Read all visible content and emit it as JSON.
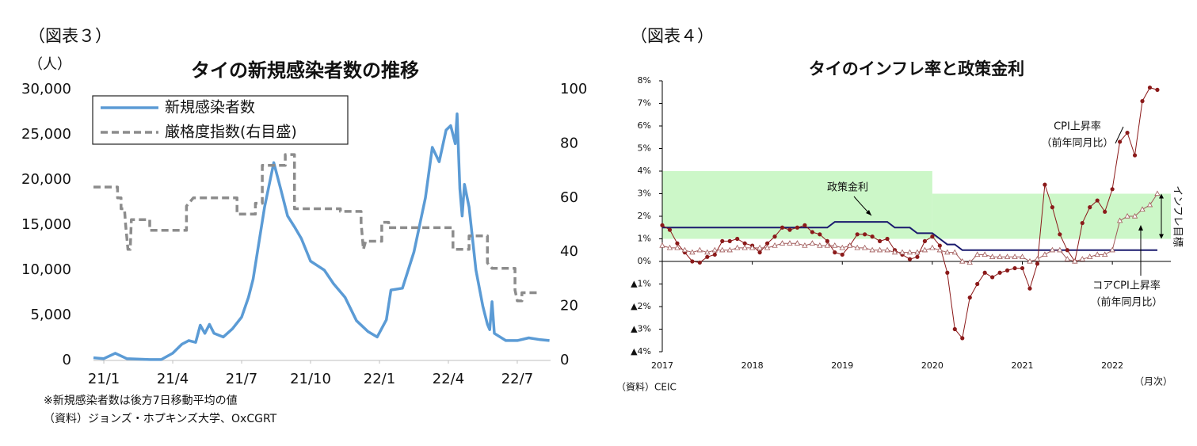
{
  "chart_data": [
    {
      "type": "line",
      "label": "（図表３）",
      "title": "タイの新規感染者数の推移",
      "y_unit": "（人）",
      "xlim": [
        -0.45,
        19.45
      ],
      "xticks": [
        {
          "value": 0,
          "label": "21/1"
        },
        {
          "value": 3,
          "label": "21/4"
        },
        {
          "value": 6,
          "label": "21/7"
        },
        {
          "value": 9,
          "label": "21/10"
        },
        {
          "value": 12,
          "label": "22/1"
        },
        {
          "value": 15,
          "label": "22/4"
        },
        {
          "value": 18,
          "label": "22/7"
        }
      ],
      "ylim": [
        0,
        30000
      ],
      "yticks": [
        0,
        {
          "value": 5000,
          "label": "5,000"
        },
        {
          "value": 10000,
          "label": "10,000"
        },
        {
          "value": 15000,
          "label": "15,000"
        },
        {
          "value": 20000,
          "label": "20,000"
        },
        {
          "value": 25000,
          "label": "25,000"
        },
        {
          "value": 30000,
          "label": "30,000"
        }
      ],
      "y2lim": [
        0,
        100
      ],
      "y2ticks": [
        0,
        20,
        40,
        60,
        80,
        100
      ],
      "legend": "upper left",
      "series": [
        {
          "name": "新規感染者数",
          "color": "#5b9bd5",
          "x": [
            -0.45,
            0,
            0.5,
            1,
            2,
            2.5,
            3,
            3.4,
            3.7,
            4,
            4.2,
            4.4,
            4.6,
            4.8,
            5.2,
            5.6,
            6,
            6.3,
            6.5,
            7,
            7.4,
            7.7,
            8,
            8.3,
            8.6,
            9,
            9.3,
            9.6,
            10,
            10.5,
            11,
            11.5,
            11.9,
            12.3,
            12.5,
            13,
            13.5,
            14,
            14.3,
            14.6,
            14.9,
            15.1,
            15.3,
            15.38,
            15.5,
            15.6,
            15.7,
            15.9,
            16.2,
            16.5,
            16.7,
            16.8,
            16.9,
            17,
            17.5,
            18,
            18.5,
            19,
            19.4
          ],
          "values": [
            300,
            200,
            800,
            200,
            100,
            100,
            800,
            1800,
            2200,
            2000,
            3900,
            3000,
            4000,
            3000,
            2600,
            3500,
            4800,
            7000,
            9000,
            17000,
            21900,
            19000,
            16000,
            14800,
            13500,
            11000,
            10500,
            10000,
            8500,
            7000,
            4400,
            3200,
            2600,
            4500,
            7800,
            8000,
            12000,
            18000,
            23600,
            22000,
            25500,
            26000,
            24000,
            27300,
            19000,
            16000,
            19500,
            17000,
            10000,
            6000,
            4000,
            3400,
            6500,
            3000,
            2200,
            2200,
            2500,
            2300,
            2200
          ]
        },
        {
          "name": "厳格度指数(右目盛)",
          "color": "#8c8c8c",
          "dashed": true,
          "axis": "y2",
          "x": [
            -0.45,
            0.6,
            0.6,
            0.75,
            0.75,
            0.9,
            0.95,
            1.05,
            1.15,
            1.2,
            2.0,
            2.0,
            3.6,
            3.6,
            3.9,
            5.8,
            5.8,
            6.6,
            6.6,
            6.9,
            6.9,
            7.9,
            7.9,
            8.3,
            8.3,
            10.3,
            10.3,
            11.2,
            11.2,
            11.3,
            11.4,
            12.1,
            12.1,
            12.4,
            12.4,
            15.2,
            15.2,
            15.9,
            15.9,
            16.7,
            16.7,
            16.9,
            17.9,
            17.9,
            18.0,
            18.2,
            18.2,
            19.0
          ],
          "values": [
            64,
            64,
            60,
            60,
            56,
            56,
            50,
            41,
            41,
            52,
            52,
            48,
            48,
            57,
            60,
            60,
            54,
            54,
            58,
            58,
            72,
            72,
            76,
            76,
            56,
            56,
            55,
            55,
            51,
            41,
            44,
            44,
            51,
            51,
            49,
            49,
            41,
            41,
            46,
            46,
            36,
            34,
            34,
            26,
            22,
            22,
            25,
            25
          ]
        }
      ],
      "notes": [
        "※新規感染者数は後方7日移動平均の値",
        "（資料）ジョンズ・ホプキンズ大学、OxCGRT"
      ]
    },
    {
      "type": "line",
      "label": "（図表４）",
      "title": "タイのインフレ率と政策金利",
      "x": [
        0,
        1,
        2,
        3,
        4,
        5,
        6,
        7,
        8,
        9,
        10,
        11,
        12,
        13,
        14,
        15,
        16,
        17,
        18,
        19,
        20,
        21,
        22,
        23,
        24,
        25,
        26,
        27,
        28,
        29,
        30,
        31,
        32,
        33,
        34,
        35,
        36,
        37,
        38,
        39,
        40,
        41,
        42,
        43,
        44,
        45,
        46,
        47,
        48,
        49,
        50,
        51,
        52,
        53,
        54,
        55,
        56,
        57,
        58,
        59,
        60,
        61,
        62,
        63,
        64,
        65,
        66
      ],
      "xlim": [
        0,
        67.8
      ],
      "xticks": [
        {
          "value": 0,
          "label": "2017"
        },
        {
          "value": 12,
          "label": "2018"
        },
        {
          "value": 24,
          "label": "2019"
        },
        {
          "value": 36,
          "label": "2020"
        },
        {
          "value": 48,
          "label": "2021"
        },
        {
          "value": 60,
          "label": "2022"
        }
      ],
      "ylim": [
        -4,
        8
      ],
      "yticks": [
        {
          "value": -4,
          "label": "▲4%"
        },
        {
          "value": -3,
          "label": "▲3%"
        },
        {
          "value": -2,
          "label": "▲2%"
        },
        {
          "value": -1,
          "label": "▲1%"
        },
        {
          "value": 0,
          "label": "0%"
        },
        {
          "value": 1,
          "label": "1%"
        },
        {
          "value": 2,
          "label": "2%"
        },
        {
          "value": 3,
          "label": "3%"
        },
        {
          "value": 4,
          "label": "4%"
        },
        {
          "value": 5,
          "label": "5%"
        },
        {
          "value": 6,
          "label": "6%"
        },
        {
          "value": 7,
          "label": "7%"
        },
        {
          "value": 8,
          "label": "8%"
        }
      ],
      "target_band": {
        "label": "インフレ目標",
        "color": "#ccf7c8",
        "ranges": [
          {
            "x": [
              0,
              36
            ],
            "low": 1,
            "high": 4
          },
          {
            "x": [
              36,
              67.8
            ],
            "low": 1,
            "high": 3
          }
        ]
      },
      "series": [
        {
          "name": "政策金利",
          "color": "#1a1a6e",
          "marker": "none",
          "values": [
            1.5,
            1.5,
            1.5,
            1.5,
            1.5,
            1.5,
            1.5,
            1.5,
            1.5,
            1.5,
            1.5,
            1.5,
            1.5,
            1.5,
            1.5,
            1.5,
            1.5,
            1.5,
            1.5,
            1.5,
            1.5,
            1.5,
            1.5,
            1.75,
            1.75,
            1.75,
            1.75,
            1.75,
            1.75,
            1.75,
            1.75,
            1.5,
            1.5,
            1.5,
            1.25,
            1.25,
            1.25,
            1.0,
            0.75,
            0.75,
            0.5,
            0.5,
            0.5,
            0.5,
            0.5,
            0.5,
            0.5,
            0.5,
            0.5,
            0.5,
            0.5,
            0.5,
            0.5,
            0.5,
            0.5,
            0.5,
            0.5,
            0.5,
            0.5,
            0.5,
            0.5,
            0.5,
            0.5,
            0.5,
            0.5,
            0.5,
            0.5
          ]
        },
        {
          "name": "CPI上昇率",
          "color": "#8b1a1a",
          "marker": "circle",
          "values": [
            1.6,
            1.4,
            0.8,
            0.4,
            0.0,
            -0.05,
            0.2,
            0.3,
            0.9,
            0.9,
            1.0,
            0.8,
            0.7,
            0.4,
            0.8,
            1.1,
            1.5,
            1.4,
            1.5,
            1.6,
            1.3,
            1.2,
            0.9,
            0.4,
            0.3,
            0.7,
            1.2,
            1.2,
            1.1,
            0.9,
            1.0,
            0.5,
            0.3,
            0.1,
            0.2,
            0.9,
            1.1,
            0.7,
            -0.5,
            -3.0,
            -3.4,
            -1.6,
            -1.0,
            -0.5,
            -0.7,
            -0.5,
            -0.4,
            -0.3,
            -0.3,
            -1.2,
            -0.1,
            3.4,
            2.4,
            1.2,
            0.5,
            0.0,
            1.7,
            2.4,
            2.7,
            2.2,
            3.2,
            5.3,
            5.7,
            4.7,
            7.1,
            7.7,
            7.6
          ]
        },
        {
          "name": "コアCPI上昇率",
          "color": "#a05a5a",
          "marker": "triangle",
          "values": [
            0.7,
            0.6,
            0.6,
            0.5,
            0.4,
            0.5,
            0.4,
            0.5,
            0.5,
            0.5,
            0.6,
            0.6,
            0.6,
            0.6,
            0.6,
            0.7,
            0.8,
            0.8,
            0.8,
            0.7,
            0.8,
            0.7,
            0.7,
            0.7,
            0.6,
            0.7,
            0.6,
            0.6,
            0.5,
            0.5,
            0.5,
            0.4,
            0.4,
            0.4,
            0.4,
            0.5,
            0.6,
            0.5,
            0.4,
            0.4,
            0.0,
            -0.05,
            0.3,
            0.3,
            0.2,
            0.2,
            0.2,
            0.2,
            0.2,
            0.0,
            0.1,
            0.3,
            0.5,
            0.5,
            0.1,
            0.0,
            0.1,
            0.2,
            0.3,
            0.3,
            0.5,
            1.8,
            2.0,
            2.0,
            2.3,
            2.5,
            3.0
          ]
        }
      ],
      "annotations": [
        "（前年同月比）",
        "（前年同月比）"
      ],
      "source": "（資料）CEIC",
      "x_unit": "（月次）"
    }
  ]
}
